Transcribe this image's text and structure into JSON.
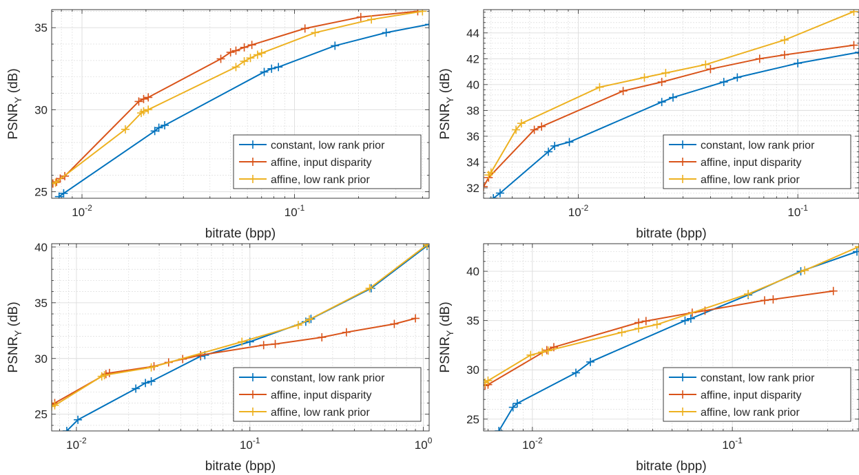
{
  "colors": {
    "constant": "#0072BD",
    "affine_disparity": "#D95319",
    "affine_lowrank": "#EDB120",
    "grid": "#dcdcdc",
    "axis": "#262626"
  },
  "chart_data": [
    {
      "type": "line",
      "xscale": "log",
      "xlabel": "bitrate (bpp)",
      "ylabel_main": "PSNR",
      "ylabel_sub": "Y",
      "ylabel_unit": " (dB)",
      "xlim": [
        0.0072,
        0.43
      ],
      "ylim": [
        24.6,
        36.1
      ],
      "xticks": [
        {
          "value": 0.01,
          "base": "10",
          "exp": "-2"
        },
        {
          "value": 0.1,
          "base": "10",
          "exp": "-1"
        }
      ],
      "yticks": [
        {
          "value": 25,
          "label": "25"
        },
        {
          "value": 30,
          "label": "30"
        },
        {
          "value": 35,
          "label": "35"
        }
      ],
      "grid": true,
      "legend": "bottom-right",
      "series": [
        {
          "name": "constant, low rank prior",
          "color_key": "constant",
          "points": [
            [
              0.0078,
              24.7
            ],
            [
              0.0082,
              24.9
            ],
            [
              0.022,
              28.7
            ],
            [
              0.023,
              28.9
            ],
            [
              0.0245,
              29.05
            ],
            [
              0.072,
              32.3
            ],
            [
              0.078,
              32.5
            ],
            [
              0.084,
              32.6
            ],
            [
              0.155,
              33.9
            ],
            [
              0.27,
              34.7
            ],
            [
              0.43,
              35.2
            ]
          ]
        },
        {
          "name": "affine, input disparity",
          "color_key": "affine_disparity",
          "points": [
            [
              0.0073,
              25.5
            ],
            [
              0.0076,
              25.6
            ],
            [
              0.0079,
              25.8
            ],
            [
              0.0083,
              25.95
            ],
            [
              0.0185,
              30.5
            ],
            [
              0.0195,
              30.65
            ],
            [
              0.0205,
              30.75
            ],
            [
              0.045,
              33.1
            ],
            [
              0.05,
              33.5
            ],
            [
              0.053,
              33.6
            ],
            [
              0.058,
              33.8
            ],
            [
              0.063,
              33.95
            ],
            [
              0.112,
              34.95
            ],
            [
              0.205,
              35.65
            ],
            [
              0.38,
              36.0
            ]
          ]
        },
        {
          "name": "affine, low rank prior",
          "color_key": "affine_lowrank",
          "points": [
            [
              0.0072,
              25.5
            ],
            [
              0.0075,
              25.55
            ],
            [
              0.016,
              28.8
            ],
            [
              0.019,
              29.8
            ],
            [
              0.0195,
              29.9
            ],
            [
              0.0205,
              30.0
            ],
            [
              0.053,
              32.6
            ],
            [
              0.058,
              32.95
            ],
            [
              0.062,
              33.15
            ],
            [
              0.067,
              33.35
            ],
            [
              0.07,
              33.45
            ],
            [
              0.125,
              34.7
            ],
            [
              0.23,
              35.5
            ],
            [
              0.4,
              36.0
            ]
          ]
        }
      ]
    },
    {
      "type": "line",
      "xscale": "log",
      "xlabel": "bitrate (bpp)",
      "ylabel_main": "PSNR",
      "ylabel_sub": "Y",
      "ylabel_unit": " (dB)",
      "xlim": [
        0.0037,
        0.19
      ],
      "ylim": [
        31.2,
        45.8
      ],
      "xticks": [
        {
          "value": 0.01,
          "base": "10",
          "exp": "-2"
        },
        {
          "value": 0.1,
          "base": "10",
          "exp": "-1"
        }
      ],
      "yticks": [
        {
          "value": 32,
          "label": "32"
        },
        {
          "value": 34,
          "label": "34"
        },
        {
          "value": 36,
          "label": "36"
        },
        {
          "value": 38,
          "label": "38"
        },
        {
          "value": 40,
          "label": "40"
        },
        {
          "value": 42,
          "label": "42"
        },
        {
          "value": 44,
          "label": "44"
        }
      ],
      "grid": true,
      "legend": "bottom-right",
      "series": [
        {
          "name": "constant, low rank prior",
          "color_key": "constant",
          "points": [
            [
              0.0041,
              31.2
            ],
            [
              0.0044,
              31.6
            ],
            [
              0.0073,
              34.8
            ],
            [
              0.0078,
              35.25
            ],
            [
              0.0091,
              35.55
            ],
            [
              0.024,
              38.65
            ],
            [
              0.027,
              39.0
            ],
            [
              0.046,
              40.2
            ],
            [
              0.053,
              40.55
            ],
            [
              0.1,
              41.65
            ],
            [
              0.19,
              42.5
            ]
          ]
        },
        {
          "name": "affine, input disparity",
          "color_key": "affine_disparity",
          "points": [
            [
              0.0037,
              32.1
            ],
            [
              0.0039,
              32.8
            ],
            [
              0.0063,
              36.5
            ],
            [
              0.0068,
              36.75
            ],
            [
              0.016,
              39.5
            ],
            [
              0.024,
              40.2
            ],
            [
              0.04,
              41.2
            ],
            [
              0.067,
              42.0
            ],
            [
              0.087,
              42.3
            ],
            [
              0.18,
              43.05
            ]
          ]
        },
        {
          "name": "affine, low rank prior",
          "color_key": "affine_lowrank",
          "points": [
            [
              0.0039,
              33.0
            ],
            [
              0.004,
              33.2
            ],
            [
              0.0052,
              36.5
            ],
            [
              0.0055,
              37.0
            ],
            [
              0.0125,
              39.8
            ],
            [
              0.02,
              40.55
            ],
            [
              0.025,
              40.9
            ],
            [
              0.038,
              41.55
            ],
            [
              0.087,
              43.45
            ],
            [
              0.18,
              45.65
            ]
          ]
        }
      ]
    },
    {
      "type": "line",
      "xscale": "log",
      "xlabel": "bitrate (bpp)",
      "ylabel_main": "PSNR",
      "ylabel_sub": "Y",
      "ylabel_unit": " (dB)",
      "xlim": [
        0.0072,
        1.08
      ],
      "ylim": [
        23.5,
        40.3
      ],
      "xticks": [
        {
          "value": 0.01,
          "base": "10",
          "exp": "-2"
        },
        {
          "value": 0.1,
          "base": "10",
          "exp": "-1"
        },
        {
          "value": 1,
          "base": "10",
          "exp": "0"
        }
      ],
      "yticks": [
        {
          "value": 25,
          "label": "25"
        },
        {
          "value": 30,
          "label": "30"
        },
        {
          "value": 35,
          "label": "35"
        },
        {
          "value": 40,
          "label": "40"
        }
      ],
      "grid": true,
      "legend": "bottom-right",
      "series": [
        {
          "name": "constant, low rank prior",
          "color_key": "constant",
          "points": [
            [
              0.0088,
              23.5
            ],
            [
              0.0102,
              24.5
            ],
            [
              0.022,
              27.3
            ],
            [
              0.025,
              27.8
            ],
            [
              0.027,
              27.95
            ],
            [
              0.052,
              30.2
            ],
            [
              0.055,
              30.3
            ],
            [
              0.1,
              31.5
            ],
            [
              0.21,
              33.3
            ],
            [
              0.225,
              33.55
            ],
            [
              0.5,
              36.3
            ],
            [
              1.05,
              40.1
            ]
          ]
        },
        {
          "name": "affine, input disparity",
          "color_key": "affine_disparity",
          "points": [
            [
              0.0072,
              25.9
            ],
            [
              0.0075,
              26.0
            ],
            [
              0.0148,
              28.6
            ],
            [
              0.0155,
              28.7
            ],
            [
              0.028,
              29.3
            ],
            [
              0.034,
              29.65
            ],
            [
              0.041,
              29.95
            ],
            [
              0.052,
              30.3
            ],
            [
              0.12,
              31.2
            ],
            [
              0.14,
              31.3
            ],
            [
              0.26,
              31.9
            ],
            [
              0.36,
              32.35
            ],
            [
              0.68,
              33.1
            ],
            [
              0.9,
              33.6
            ]
          ]
        },
        {
          "name": "affine, low rank prior",
          "color_key": "affine_lowrank",
          "points": [
            [
              0.0072,
              25.7
            ],
            [
              0.0075,
              25.8
            ],
            [
              0.014,
              28.4
            ],
            [
              0.0145,
              28.5
            ],
            [
              0.027,
              29.2
            ],
            [
              0.09,
              31.5
            ],
            [
              0.19,
              33.0
            ],
            [
              0.22,
              33.5
            ],
            [
              0.49,
              36.3
            ],
            [
              1.05,
              40.2
            ]
          ]
        }
      ]
    },
    {
      "type": "line",
      "xscale": "log",
      "xlabel": "bitrate (bpp)",
      "ylabel_main": "PSNR",
      "ylabel_sub": "Y",
      "ylabel_unit": " (dB)",
      "xlim": [
        0.0057,
        0.43
      ],
      "ylim": [
        23.8,
        42.8
      ],
      "xticks": [
        {
          "value": 0.01,
          "base": "10",
          "exp": "-2"
        },
        {
          "value": 0.1,
          "base": "10",
          "exp": "-1"
        }
      ],
      "yticks": [
        {
          "value": 25,
          "label": "25"
        },
        {
          "value": 30,
          "label": "30"
        },
        {
          "value": 35,
          "label": "35"
        },
        {
          "value": 40,
          "label": "40"
        }
      ],
      "grid": true,
      "legend": "bottom-right",
      "series": [
        {
          "name": "constant, low rank prior",
          "color_key": "constant",
          "points": [
            [
              0.0068,
              23.8
            ],
            [
              0.008,
              26.2
            ],
            [
              0.0084,
              26.6
            ],
            [
              0.0165,
              29.7
            ],
            [
              0.0195,
              30.8
            ],
            [
              0.058,
              35.0
            ],
            [
              0.062,
              35.2
            ],
            [
              0.12,
              37.6
            ],
            [
              0.22,
              40.0
            ],
            [
              0.42,
              42.0
            ]
          ]
        },
        {
          "name": "affine, input disparity",
          "color_key": "affine_disparity",
          "points": [
            [
              0.0058,
              28.4
            ],
            [
              0.006,
              28.5
            ],
            [
              0.0118,
              32.0
            ],
            [
              0.0128,
              32.3
            ],
            [
              0.034,
              34.8
            ],
            [
              0.037,
              34.95
            ],
            [
              0.063,
              35.8
            ],
            [
              0.073,
              36.0
            ],
            [
              0.145,
              37.05
            ],
            [
              0.16,
              37.15
            ],
            [
              0.32,
              38.0
            ]
          ]
        },
        {
          "name": "affine, low rank prior",
          "color_key": "affine_lowrank",
          "points": [
            [
              0.0058,
              28.7
            ],
            [
              0.006,
              28.9
            ],
            [
              0.0098,
              31.5
            ],
            [
              0.0112,
              31.8
            ],
            [
              0.012,
              31.95
            ],
            [
              0.028,
              33.8
            ],
            [
              0.034,
              34.2
            ],
            [
              0.042,
              34.6
            ],
            [
              0.12,
              37.7
            ],
            [
              0.23,
              40.1
            ],
            [
              0.43,
              42.5
            ]
          ]
        }
      ]
    }
  ]
}
